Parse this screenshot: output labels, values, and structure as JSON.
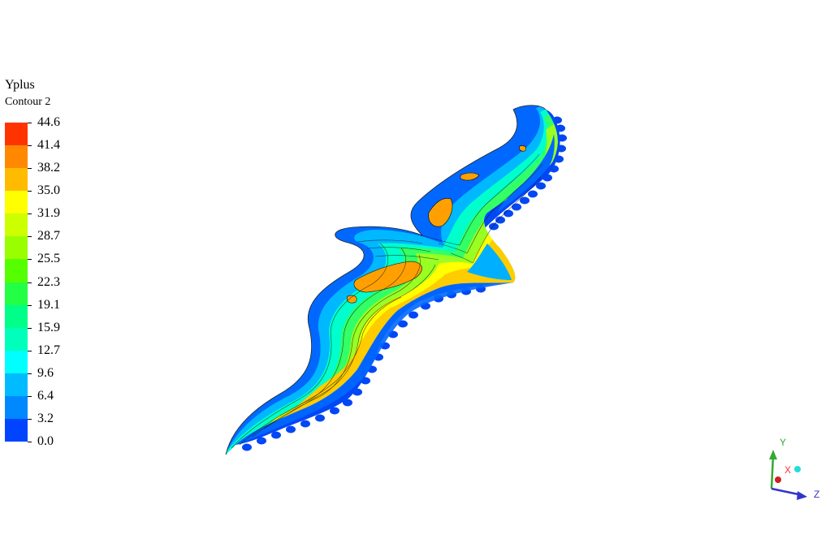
{
  "legend": {
    "title": "Yplus",
    "subtitle": "Contour 2",
    "levels": [
      "44.6",
      "41.4",
      "38.2",
      "35.0",
      "31.9",
      "28.7",
      "25.5",
      "22.3",
      "19.1",
      "15.9",
      "12.7",
      "9.6",
      "6.4",
      "3.2",
      "0.0"
    ],
    "colors": [
      "#ff3300",
      "#ff8800",
      "#ffbb00",
      "#ffff00",
      "#ccff00",
      "#99ff00",
      "#55ff00",
      "#22ff44",
      "#00ff88",
      "#00ffbb",
      "#00ffff",
      "#00bbff",
      "#0088ff",
      "#0044ff"
    ]
  },
  "axes": {
    "x_label": "X",
    "y_label": "Y",
    "z_label": "Z",
    "x_color": "#ff3333",
    "y_color": "#33aa33",
    "z_color": "#3333cc"
  }
}
